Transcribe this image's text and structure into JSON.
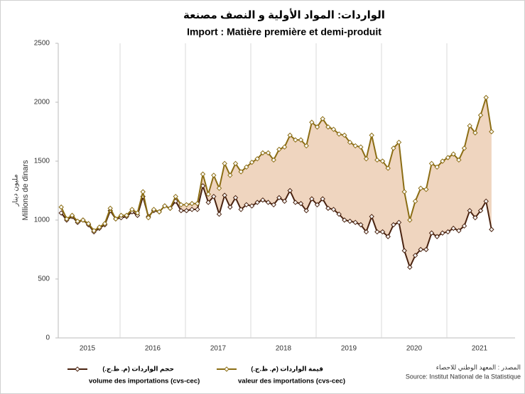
{
  "chart_data": {
    "type": "line",
    "title": "الواردات: المواد الأولية و النصف مصنعة",
    "subtitle": "Import : Matière première et demi-produit",
    "y_label_ar": "مليون دينار",
    "y_label": "Millions de dinars",
    "years": [
      "2015",
      "2016",
      "2017",
      "2018",
      "2019",
      "2020",
      "2021"
    ],
    "series": [
      {
        "name_ar": "حجم الواردات (م. ظ.ج.)",
        "name": "volume des importations (cvs-cec)",
        "color": "#4a2310",
        "values": [
          1060,
          1000,
          1030,
          980,
          1000,
          960,
          900,
          930,
          960,
          1080,
          1010,
          1020,
          1030,
          1070,
          1040,
          1200,
          1030,
          1080,
          1070,
          1120,
          1100,
          1160,
          1080,
          1080,
          1090,
          1090,
          1290,
          1150,
          1200,
          1050,
          1210,
          1110,
          1190,
          1090,
          1130,
          1120,
          1150,
          1170,
          1150,
          1130,
          1190,
          1160,
          1250,
          1150,
          1140,
          1080,
          1180,
          1130,
          1180,
          1100,
          1090,
          1050,
          1000,
          990,
          980,
          960,
          900,
          1030,
          900,
          900,
          860,
          960,
          980,
          740,
          600,
          700,
          750,
          750,
          890,
          860,
          890,
          900,
          930,
          910,
          950,
          1080,
          1020,
          1080,
          1160,
          920
        ]
      },
      {
        "name_ar": "قيمة الواردات (م. ظ.ج.)",
        "name": "valeur des importations (cvs-cec)",
        "color": "#8b6d14",
        "values": [
          1110,
          1010,
          1040,
          990,
          1000,
          970,
          910,
          940,
          970,
          1100,
          1010,
          1040,
          1040,
          1090,
          1060,
          1240,
          1020,
          1090,
          1070,
          1120,
          1100,
          1200,
          1130,
          1130,
          1140,
          1140,
          1390,
          1220,
          1380,
          1270,
          1480,
          1380,
          1480,
          1410,
          1450,
          1490,
          1520,
          1570,
          1570,
          1510,
          1600,
          1620,
          1720,
          1680,
          1680,
          1630,
          1830,
          1790,
          1860,
          1790,
          1770,
          1730,
          1720,
          1660,
          1630,
          1620,
          1520,
          1720,
          1510,
          1500,
          1440,
          1610,
          1660,
          1240,
          1000,
          1160,
          1270,
          1260,
          1480,
          1450,
          1500,
          1530,
          1560,
          1510,
          1610,
          1800,
          1740,
          1890,
          2040,
          1750
        ]
      }
    ],
    "fill_color": "#efd5bf",
    "ylim": [
      0,
      2500
    ],
    "yticks": [
      0,
      500,
      1000,
      1500,
      2000,
      2500
    ],
    "source_ar": "المصدر : المعهد الوطني للاحصاء",
    "source": "Source: Institut National de la Statistique"
  }
}
